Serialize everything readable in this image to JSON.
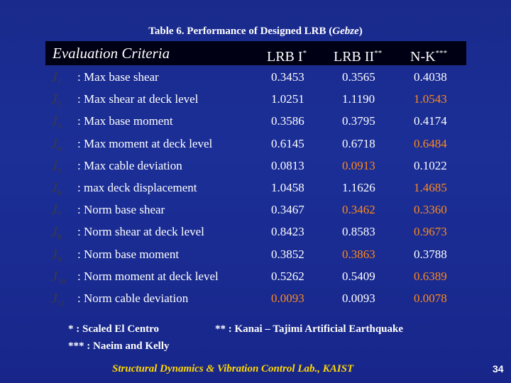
{
  "title": {
    "prefix": "Table 6. Performance of Designed LRB (",
    "place": "Gebze",
    "suffix": ")"
  },
  "header": {
    "criteria": "Evaluation Criteria",
    "col1": "LRB I",
    "col1_sup": "*",
    "col2": "LRB II",
    "col2_sup": "**",
    "col3": "N-K",
    "col3_sup": "***"
  },
  "rows": [
    {
      "sym": "J",
      "sub": "1",
      "label": ": Max base shear",
      "v1": "0.3453",
      "v2": "0.3565",
      "v3": "0.4038"
    },
    {
      "sym": "J",
      "sub": "2",
      "label": ": Max shear at deck level",
      "v1": "1.0251",
      "v2": "1.1190",
      "v3": "1.0543"
    },
    {
      "sym": "J",
      "sub": "3",
      "label": ": Max base moment",
      "v1": "0.3586",
      "v2": "0.3795",
      "v3": "0.4174"
    },
    {
      "sym": "J",
      "sub": "4",
      "label": ": Max moment at deck level",
      "v1": "0.6145",
      "v2": "0.6718",
      "v3": "0.6484"
    },
    {
      "sym": "J",
      "sub": "5",
      "label": ": Max cable deviation",
      "v1": "0.0813",
      "v2": "0.0913",
      "v3": "0.1022"
    },
    {
      "sym": "J",
      "sub": "6",
      "label": ": max deck displacement",
      "v1": "1.0458",
      "v2": "1.1626",
      "v3": "1.4685"
    },
    {
      "sym": "J",
      "sub": "7",
      "label": ": Norm base shear",
      "v1": "0.3467",
      "v2": "0.3462",
      "v3": "0.3360"
    },
    {
      "sym": "J",
      "sub": "8",
      "label": ": Norm shear at deck level",
      "v1": "0.8423",
      "v2": "0.8583",
      "v3": "0.9673"
    },
    {
      "sym": "J",
      "sub": "9",
      "label": ": Norm base moment",
      "v1": "0.3852",
      "v2": "0.3863",
      "v3": "0.3788"
    },
    {
      "sym": "J",
      "sub": "10",
      "label": ": Norm moment at deck level",
      "v1": "0.5262",
      "v2": "0.5409",
      "v3": "0.6389"
    },
    {
      "sym": "J",
      "sub": "11",
      "label": ": Norm cable deviation",
      "v1": "0.0093",
      "v2": "0.0093",
      "v3": "0.0078"
    }
  ],
  "highlight_color": "#ff8a1a",
  "notes": {
    "n1": "*   : Scaled El Centro",
    "n2": "** : Kanai – Tajimi Artificial Earthquake",
    "n3": "*** : Naeim and Kelly"
  },
  "footer": "Structural Dynamics & Vibration Control Lab., KAIST",
  "page_number": "34"
}
